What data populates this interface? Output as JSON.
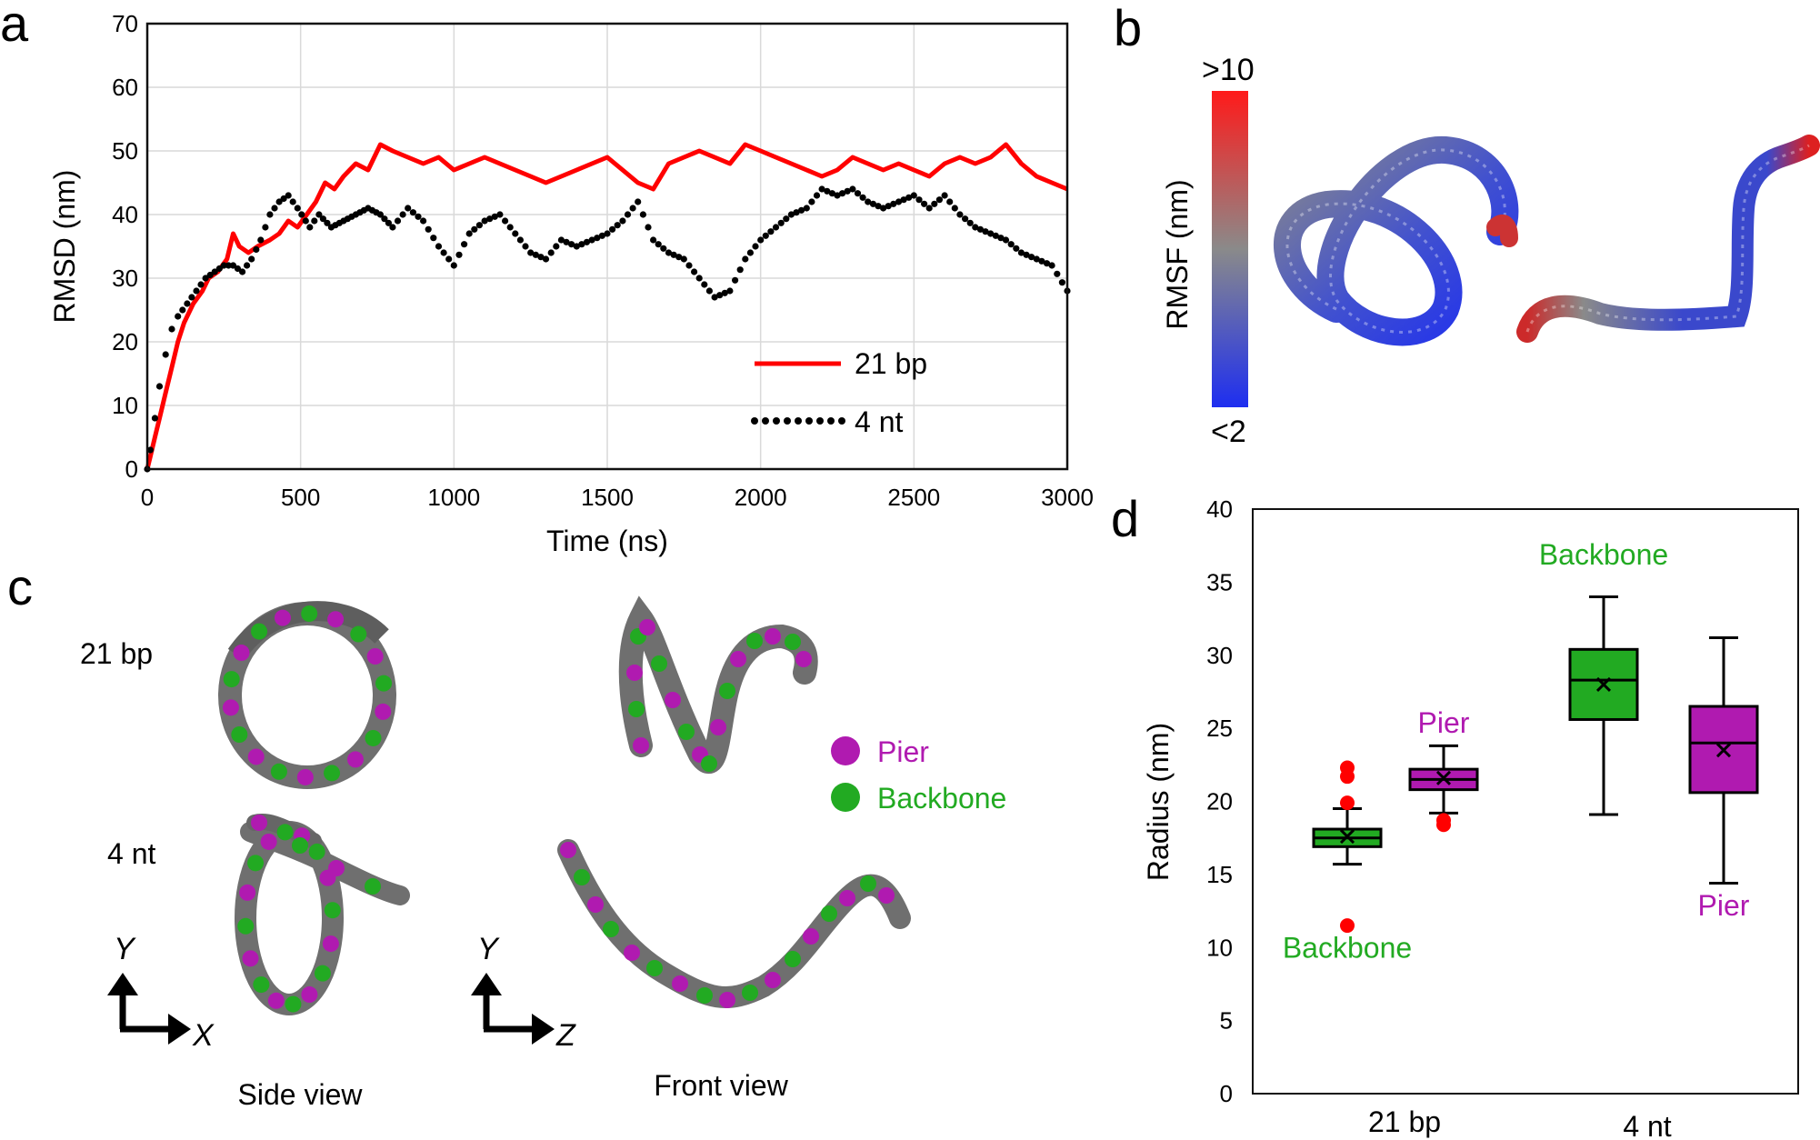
{
  "panels": {
    "a": "a",
    "b": "b",
    "c": "c",
    "d": "d"
  },
  "chart_data": [
    {
      "type": "line",
      "panel": "a",
      "xlabel": "Time (ns)",
      "ylabel": "RMSD (nm)",
      "xlim": [
        0,
        3000
      ],
      "ylim": [
        0,
        70
      ],
      "xticks": [
        "0",
        "500",
        "1000",
        "1500",
        "2000",
        "2500",
        "3000"
      ],
      "yticks": [
        "0",
        "10",
        "20",
        "30",
        "40",
        "50",
        "60",
        "70"
      ],
      "grid": true,
      "legend_position": "bottom-right",
      "series": [
        {
          "name": "21 bp",
          "style": "solid",
          "color": "#ff0000",
          "x": [
            0,
            10,
            25,
            40,
            60,
            80,
            100,
            120,
            150,
            180,
            200,
            230,
            260,
            280,
            300,
            330,
            360,
            400,
            430,
            460,
            490,
            520,
            550,
            580,
            610,
            640,
            680,
            720,
            760,
            800,
            850,
            900,
            950,
            1000,
            1050,
            1100,
            1150,
            1200,
            1250,
            1300,
            1350,
            1400,
            1450,
            1500,
            1550,
            1600,
            1650,
            1700,
            1750,
            1800,
            1850,
            1900,
            1950,
            2000,
            2050,
            2100,
            2150,
            2200,
            2250,
            2300,
            2350,
            2400,
            2450,
            2500,
            2550,
            2600,
            2650,
            2700,
            2750,
            2800,
            2850,
            2900,
            2950,
            3000
          ],
          "values": [
            0,
            2,
            5,
            8,
            12,
            16,
            20,
            23,
            26,
            28,
            30,
            31,
            33,
            37,
            35,
            34,
            35,
            36,
            37,
            39,
            38,
            40,
            42,
            45,
            44,
            46,
            48,
            47,
            51,
            50,
            49,
            48,
            49,
            47,
            48,
            49,
            48,
            47,
            46,
            45,
            46,
            47,
            48,
            49,
            47,
            45,
            44,
            48,
            49,
            50,
            49,
            48,
            51,
            50,
            49,
            48,
            47,
            46,
            47,
            49,
            48,
            47,
            48,
            47,
            46,
            48,
            49,
            48,
            49,
            51,
            48,
            46,
            45,
            44
          ]
        },
        {
          "name": "4 nt",
          "style": "dotted",
          "color": "#000000",
          "x": [
            0,
            10,
            25,
            40,
            60,
            80,
            100,
            130,
            160,
            190,
            220,
            250,
            280,
            310,
            340,
            370,
            400,
            430,
            460,
            490,
            530,
            560,
            600,
            640,
            680,
            720,
            760,
            800,
            850,
            900,
            950,
            1000,
            1050,
            1100,
            1150,
            1200,
            1250,
            1300,
            1350,
            1400,
            1450,
            1500,
            1550,
            1600,
            1650,
            1700,
            1750,
            1800,
            1850,
            1900,
            1950,
            2000,
            2050,
            2100,
            2150,
            2200,
            2250,
            2300,
            2350,
            2400,
            2450,
            2500,
            2550,
            2600,
            2650,
            2700,
            2750,
            2800,
            2850,
            2900,
            2950,
            3000
          ],
          "values": [
            0,
            3,
            8,
            13,
            18,
            22,
            24,
            26,
            28,
            30,
            31,
            32,
            32,
            31,
            33,
            36,
            40,
            42,
            43,
            41,
            38,
            40,
            38,
            39,
            40,
            41,
            40,
            38,
            41,
            39,
            35,
            32,
            37,
            39,
            40,
            37,
            34,
            33,
            36,
            35,
            36,
            37,
            39,
            42,
            36,
            34,
            33,
            30,
            27,
            28,
            33,
            36,
            38,
            40,
            41,
            44,
            43,
            44,
            42,
            41,
            42,
            43,
            41,
            43,
            40,
            38,
            37,
            36,
            34,
            33,
            32,
            28
          ]
        }
      ]
    },
    {
      "type": "colorbar",
      "panel": "b",
      "label": "RMSF (nm)",
      "max_label": ">10",
      "min_label": "<2",
      "colors": [
        "#ff1a1a",
        "#8a8a8a",
        "#1e2ef0"
      ]
    },
    {
      "type": "box",
      "panel": "d",
      "ylabel": "Radius (nm)",
      "ylim": [
        0,
        40
      ],
      "yticks": [
        "0",
        "5",
        "10",
        "15",
        "20",
        "25",
        "30",
        "35",
        "40"
      ],
      "categories": [
        "21 bp",
        "4 nt"
      ],
      "series": [
        {
          "name": "Backbone",
          "group": "21 bp",
          "color": "#22aa22",
          "label": "Backbone",
          "label_position": "below",
          "q1": 16.9,
          "median": 17.5,
          "q3": 18.1,
          "mean": 17.6,
          "whisker_low": 15.7,
          "whisker_high": 19.5,
          "outliers": [
            11.5,
            19.9,
            21.7,
            22.3
          ]
        },
        {
          "name": "Pier",
          "group": "21 bp",
          "color": "#b01ab0",
          "label": "Pier",
          "label_position": "above",
          "q1": 20.8,
          "median": 21.5,
          "q3": 22.2,
          "mean": 21.6,
          "whisker_low": 19.2,
          "whisker_high": 23.8,
          "outliers": [
            18.4,
            18.7
          ]
        },
        {
          "name": "Backbone",
          "group": "4 nt",
          "color": "#22aa22",
          "label": "Backbone",
          "label_position": "above",
          "q1": 25.6,
          "median": 28.3,
          "q3": 30.4,
          "mean": 28.0,
          "whisker_low": 19.1,
          "whisker_high": 34.0,
          "outliers": []
        },
        {
          "name": "Pier",
          "group": "4 nt",
          "color": "#b01ab0",
          "label": "Pier",
          "label_position": "below",
          "q1": 20.6,
          "median": 24.0,
          "q3": 26.5,
          "mean": 23.5,
          "whisker_low": 14.4,
          "whisker_high": 31.2,
          "outliers": []
        }
      ]
    }
  ],
  "panel_c": {
    "row_labels": [
      "21 bp",
      "4 nt"
    ],
    "view_labels": [
      "Side view",
      "Front view"
    ],
    "legend": [
      {
        "label": "Pier",
        "color": "#b01ab0"
      },
      {
        "label": "Backbone",
        "color": "#22aa22"
      }
    ],
    "axes_side": {
      "y": "Y",
      "x": "X"
    },
    "axes_front": {
      "y": "Y",
      "x": "Z"
    }
  },
  "colors": {
    "red": "#ff0000",
    "pier": "#b01ab0",
    "backbone": "#22aa22",
    "dna_gray": "#6f6f6f"
  }
}
